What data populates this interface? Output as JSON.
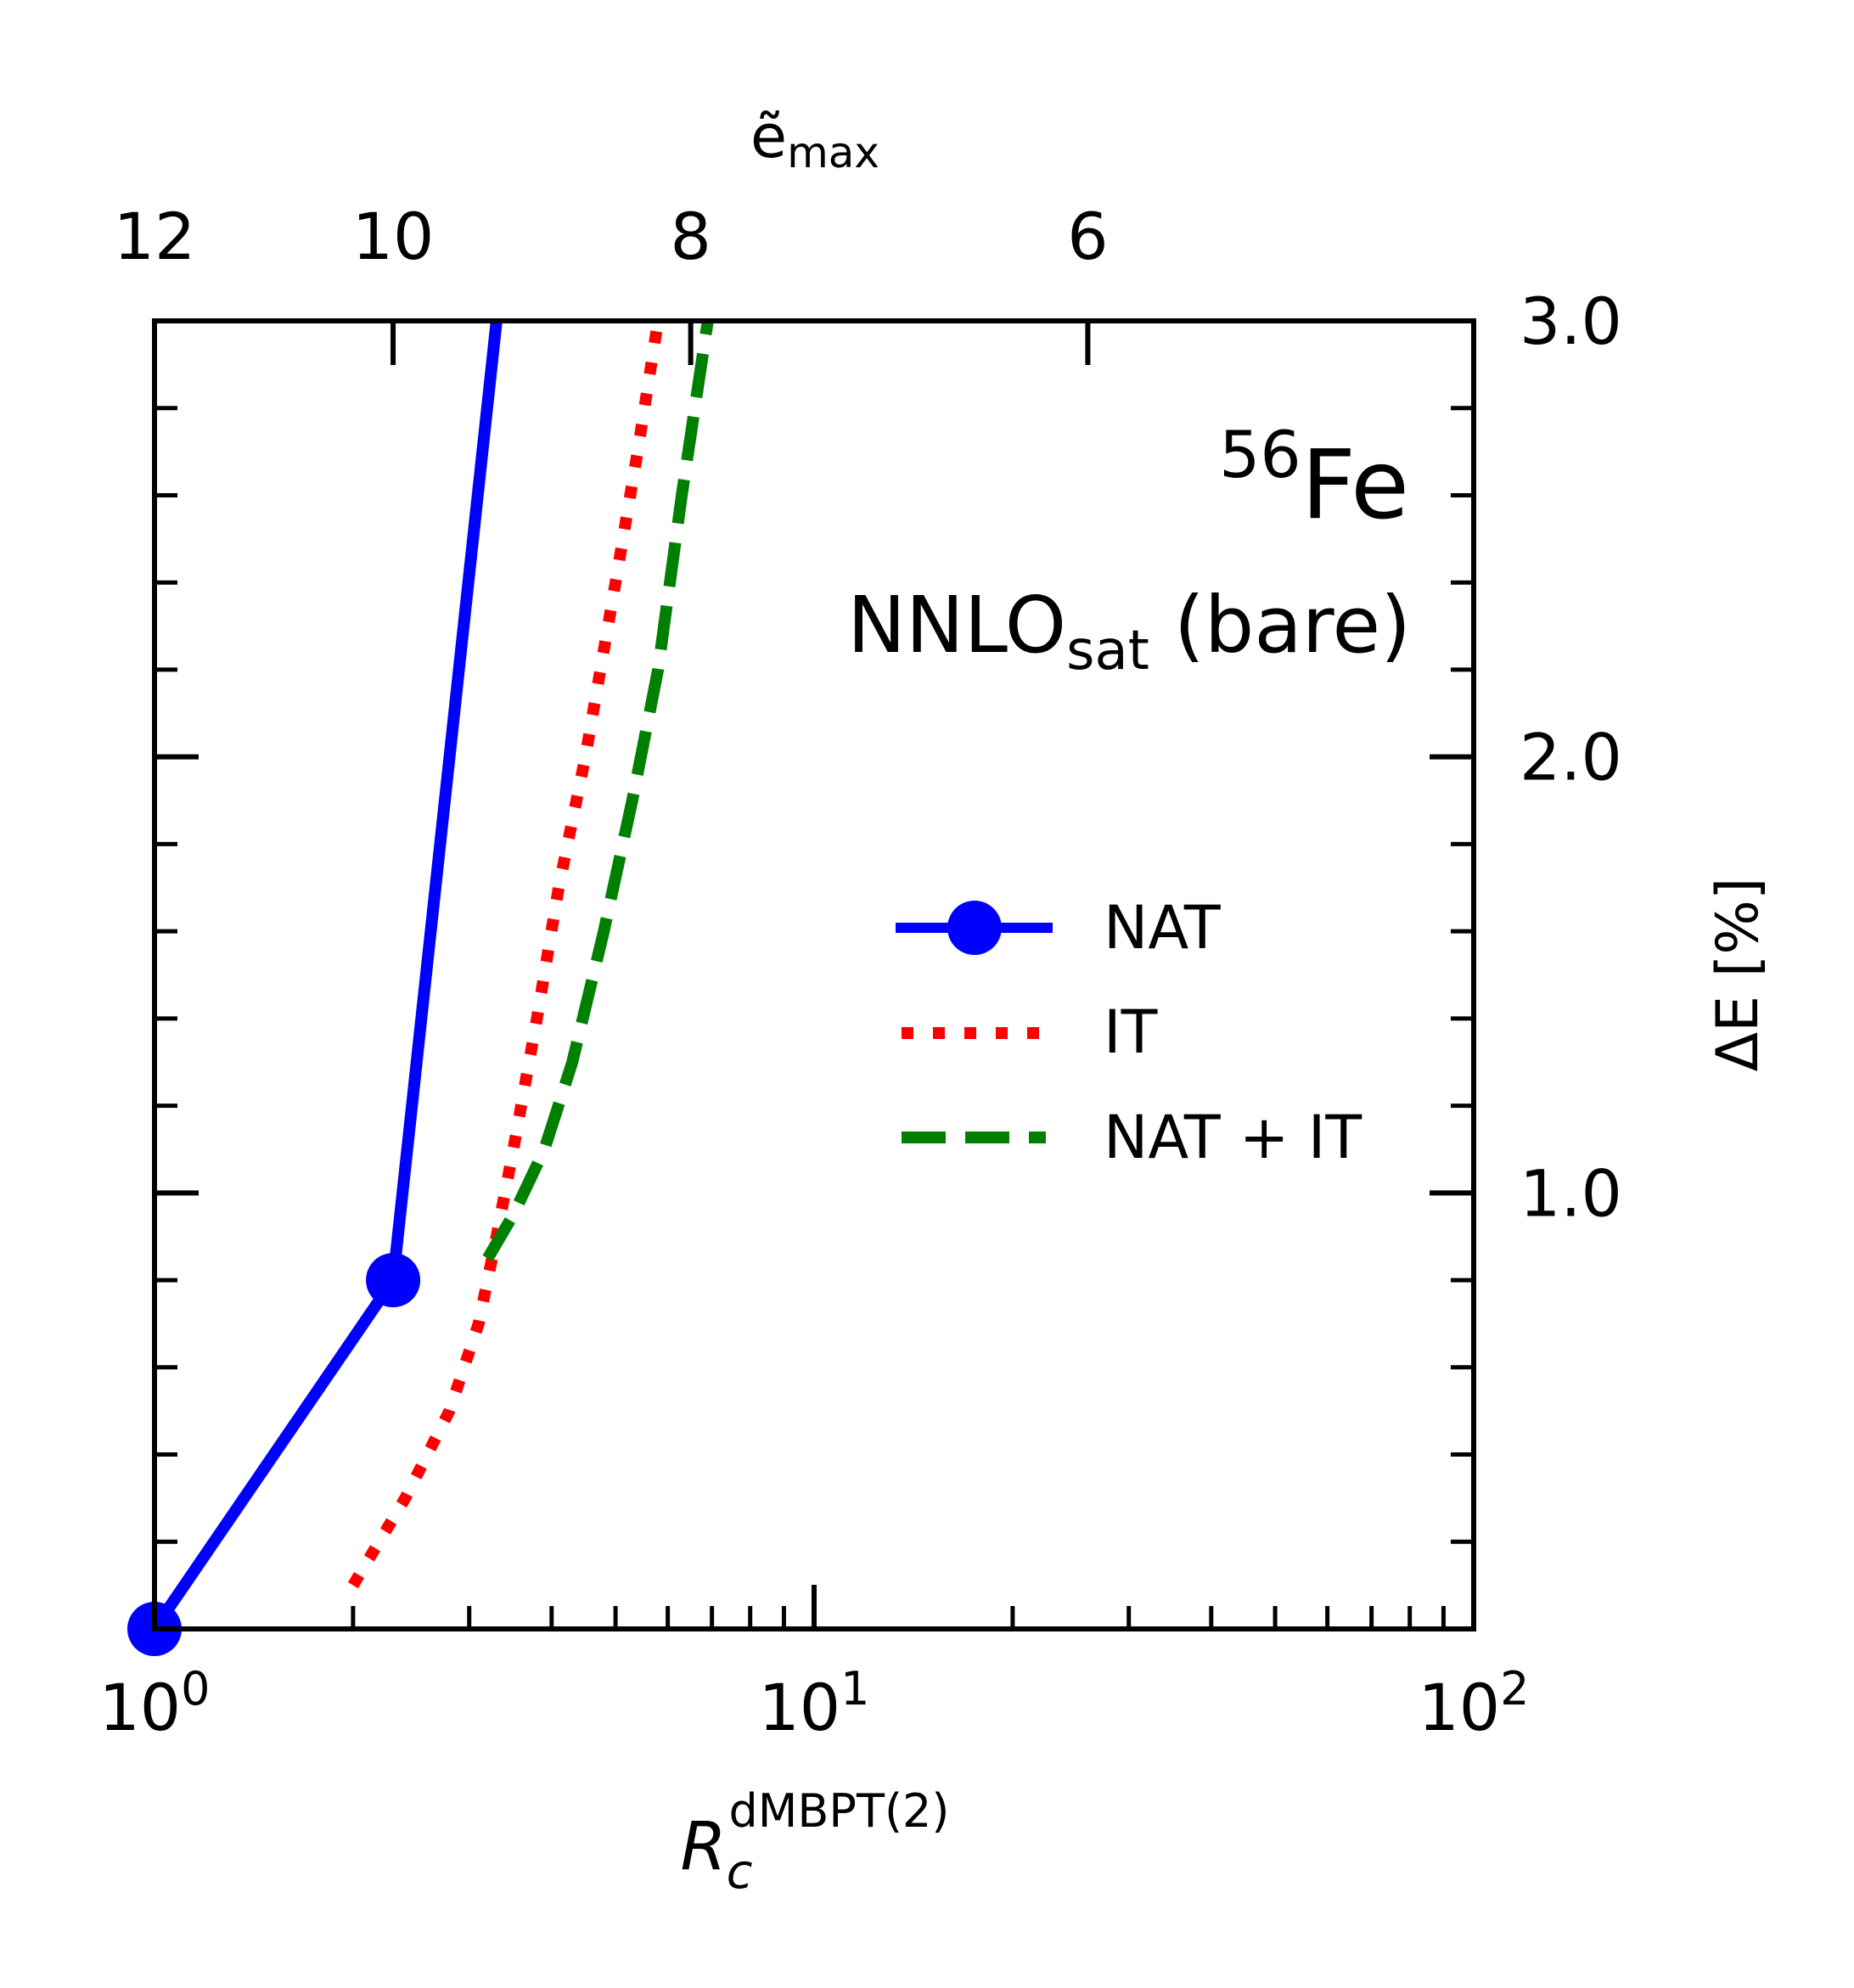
{
  "chart_data": {
    "type": "line",
    "annotations": {
      "nucleus_mass": "56",
      "nucleus_symbol": "Fe",
      "interaction_main": "NNLO",
      "interaction_sub": "sat",
      "interaction_suffix": " (bare)"
    },
    "x_axis": {
      "label_main": "R",
      "label_sub": "c",
      "label_sup": "dMBPT(2)",
      "scale": "log",
      "lim": [
        1,
        100
      ],
      "major_ticks": [
        {
          "value": 1,
          "base": "10",
          "exp": "0"
        },
        {
          "value": 10,
          "base": "10",
          "exp": "1"
        },
        {
          "value": 100,
          "base": "10",
          "exp": "2"
        }
      ]
    },
    "top_axis": {
      "label_main": "ẽ",
      "label_sub": "max",
      "ticks": [
        {
          "value": 12,
          "label": "12",
          "x_at": 1.0
        },
        {
          "value": 10,
          "label": "10",
          "x_at": 2.3
        },
        {
          "value": 8,
          "label": "8",
          "x_at": 6.5
        },
        {
          "value": 6,
          "label": "6",
          "x_at": 26.0
        }
      ]
    },
    "y_axis": {
      "label": "ΔE [%]",
      "position": "right",
      "lim": [
        0.0,
        3.0
      ],
      "major_ticks": [
        {
          "value": 1.0,
          "label": "1.0"
        },
        {
          "value": 2.0,
          "label": "2.0"
        },
        {
          "value": 3.0,
          "label": "3.0"
        }
      ],
      "minor_step": 0.2
    },
    "legend": {
      "position": "center-right"
    },
    "series": [
      {
        "name": "NAT",
        "color": "#0000ff",
        "style": "solid-marker",
        "x": [
          1.0,
          2.3,
          3.3
        ],
        "y": [
          0.0,
          0.8,
          3.0
        ],
        "marker_x": [
          1.0,
          2.3
        ],
        "marker_y": [
          0.0,
          0.8
        ]
      },
      {
        "name": "IT",
        "color": "#ff0000",
        "style": "dotted",
        "x": [
          2.0,
          2.4,
          2.8,
          3.1,
          3.3,
          3.5,
          3.8,
          4.1,
          4.5,
          5.0,
          5.4,
          5.8
        ],
        "y": [
          0.1,
          0.3,
          0.5,
          0.7,
          0.9,
          1.1,
          1.4,
          1.7,
          2.0,
          2.4,
          2.7,
          3.0
        ]
      },
      {
        "name": "NAT + IT",
        "color": "#008000",
        "style": "dashed",
        "x": [
          3.2,
          3.5,
          3.9,
          4.3,
          4.8,
          5.3,
          5.8,
          6.3,
          6.9
        ],
        "y": [
          0.85,
          0.95,
          1.1,
          1.3,
          1.6,
          1.9,
          2.2,
          2.6,
          3.0
        ]
      }
    ]
  }
}
